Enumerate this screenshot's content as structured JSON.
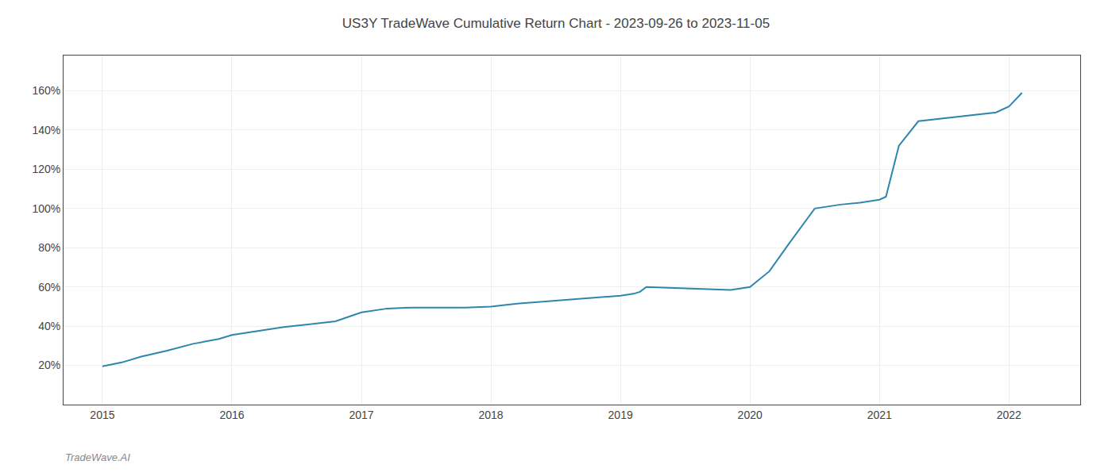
{
  "chart_data": {
    "type": "line",
    "title": "US3Y TradeWave Cumulative Return Chart - 2023-09-26 to 2023-11-05",
    "annotations": [
      "TradeWave.AI"
    ],
    "x": [
      2015.0,
      2015.15,
      2015.3,
      2015.5,
      2015.7,
      2015.9,
      2016.0,
      2016.2,
      2016.4,
      2016.6,
      2016.8,
      2017.0,
      2017.2,
      2017.4,
      2017.6,
      2017.8,
      2018.0,
      2018.2,
      2018.4,
      2018.6,
      2018.8,
      2019.0,
      2019.1,
      2019.15,
      2019.2,
      2019.4,
      2019.6,
      2019.8,
      2019.85,
      2019.9,
      2020.0,
      2020.15,
      2020.3,
      2020.5,
      2020.7,
      2020.85,
      2021.0,
      2021.05,
      2021.15,
      2021.3,
      2021.5,
      2021.7,
      2021.9,
      2022.0,
      2022.1
    ],
    "values": [
      0.195,
      0.215,
      0.245,
      0.275,
      0.31,
      0.335,
      0.355,
      0.375,
      0.395,
      0.41,
      0.425,
      0.47,
      0.49,
      0.495,
      0.495,
      0.495,
      0.5,
      0.515,
      0.525,
      0.535,
      0.545,
      0.555,
      0.565,
      0.575,
      0.6,
      0.595,
      0.59,
      0.585,
      0.585,
      0.59,
      0.6,
      0.68,
      0.82,
      1.0,
      1.02,
      1.03,
      1.045,
      1.06,
      1.32,
      1.445,
      1.46,
      1.475,
      1.49,
      1.52,
      1.59
    ],
    "color": "#2e86ab",
    "xlim": [
      2014.7,
      2022.55
    ],
    "xticks": [
      2015,
      2016,
      2017,
      2018,
      2019,
      2020,
      2021,
      2022
    ],
    "ylim": [
      0.0,
      1.78
    ],
    "yticks": [
      {
        "value": 0.2,
        "label": "20%"
      },
      {
        "value": 0.4,
        "label": "40%"
      },
      {
        "value": 0.6,
        "label": "60%"
      },
      {
        "value": 0.8,
        "label": "80%"
      },
      {
        "value": 1.0,
        "label": "100%"
      },
      {
        "value": 1.2,
        "label": "120%"
      },
      {
        "value": 1.4,
        "label": "140%"
      },
      {
        "value": 1.6,
        "label": "160%"
      }
    ],
    "grid": true
  }
}
